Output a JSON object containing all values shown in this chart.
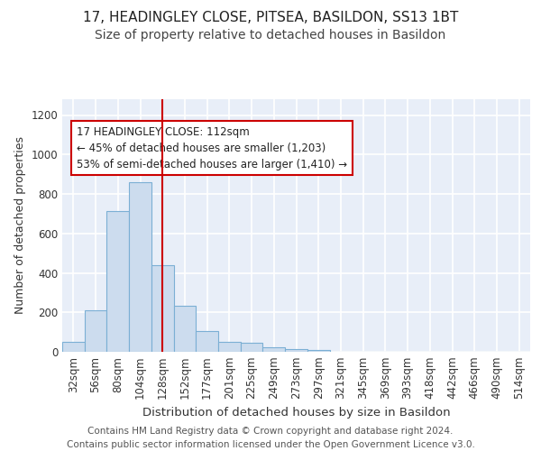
{
  "title1": "17, HEADINGLEY CLOSE, PITSEA, BASILDON, SS13 1BT",
  "title2": "Size of property relative to detached houses in Basildon",
  "xlabel": "Distribution of detached houses by size in Basildon",
  "ylabel": "Number of detached properties",
  "footer": "Contains HM Land Registry data © Crown copyright and database right 2024.\nContains public sector information licensed under the Open Government Licence v3.0.",
  "bar_labels": [
    "32sqm",
    "56sqm",
    "80sqm",
    "104sqm",
    "128sqm",
    "152sqm",
    "177sqm",
    "201sqm",
    "225sqm",
    "249sqm",
    "273sqm",
    "297sqm",
    "321sqm",
    "345sqm",
    "369sqm",
    "393sqm",
    "418sqm",
    "442sqm",
    "466sqm",
    "490sqm",
    "514sqm"
  ],
  "bar_values": [
    50,
    210,
    715,
    860,
    440,
    235,
    105,
    50,
    45,
    25,
    15,
    8,
    0,
    0,
    0,
    0,
    0,
    0,
    0,
    0,
    0
  ],
  "bar_color": "#ccdcee",
  "bar_edge_color": "#7bafd4",
  "bg_color": "#e8eef8",
  "grid_color": "#ffffff",
  "annotation_text": "17 HEADINGLEY CLOSE: 112sqm\n← 45% of detached houses are smaller (1,203)\n53% of semi-detached houses are larger (1,410) →",
  "vline_x": 4.0,
  "ylim": [
    0,
    1280
  ],
  "yticks": [
    0,
    200,
    400,
    600,
    800,
    1000,
    1200
  ],
  "red_color": "#cc0000",
  "title1_fontsize": 11,
  "title2_fontsize": 10,
  "xlabel_fontsize": 9.5,
  "ylabel_fontsize": 9,
  "tick_fontsize": 8.5,
  "footer_fontsize": 7.5,
  "annot_fontsize": 8.5
}
